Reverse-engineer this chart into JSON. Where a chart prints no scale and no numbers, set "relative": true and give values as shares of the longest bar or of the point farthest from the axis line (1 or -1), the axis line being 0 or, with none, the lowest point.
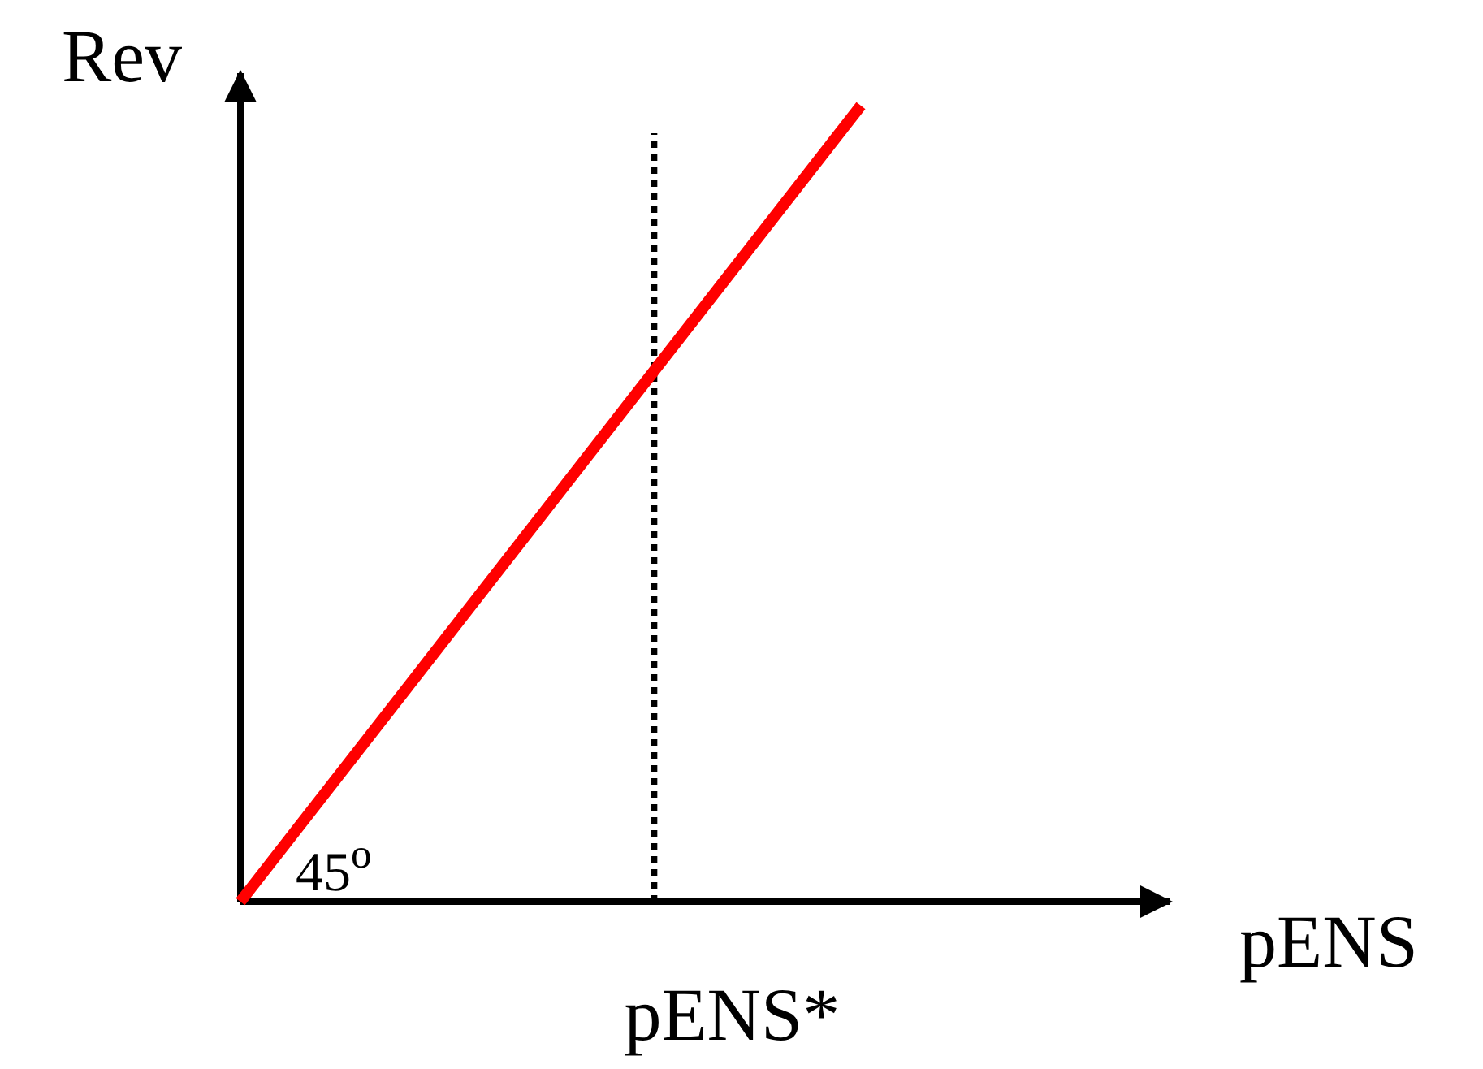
{
  "chart_data": {
    "type": "line",
    "relative": true,
    "xlabel": "pENS",
    "ylabel": "Rev",
    "categories": [
      null,
      null,
      null,
      null
    ],
    "series": [
      {
        "color": "#ff0000",
        "values": [
          0,
          0.3333,
          0.6667,
          1
        ]
      }
    ],
    "annotations": [
      "45$^{o}$",
      "pENS*"
    ],
    "marker": "none",
    "line_style": "solid"
  }
}
